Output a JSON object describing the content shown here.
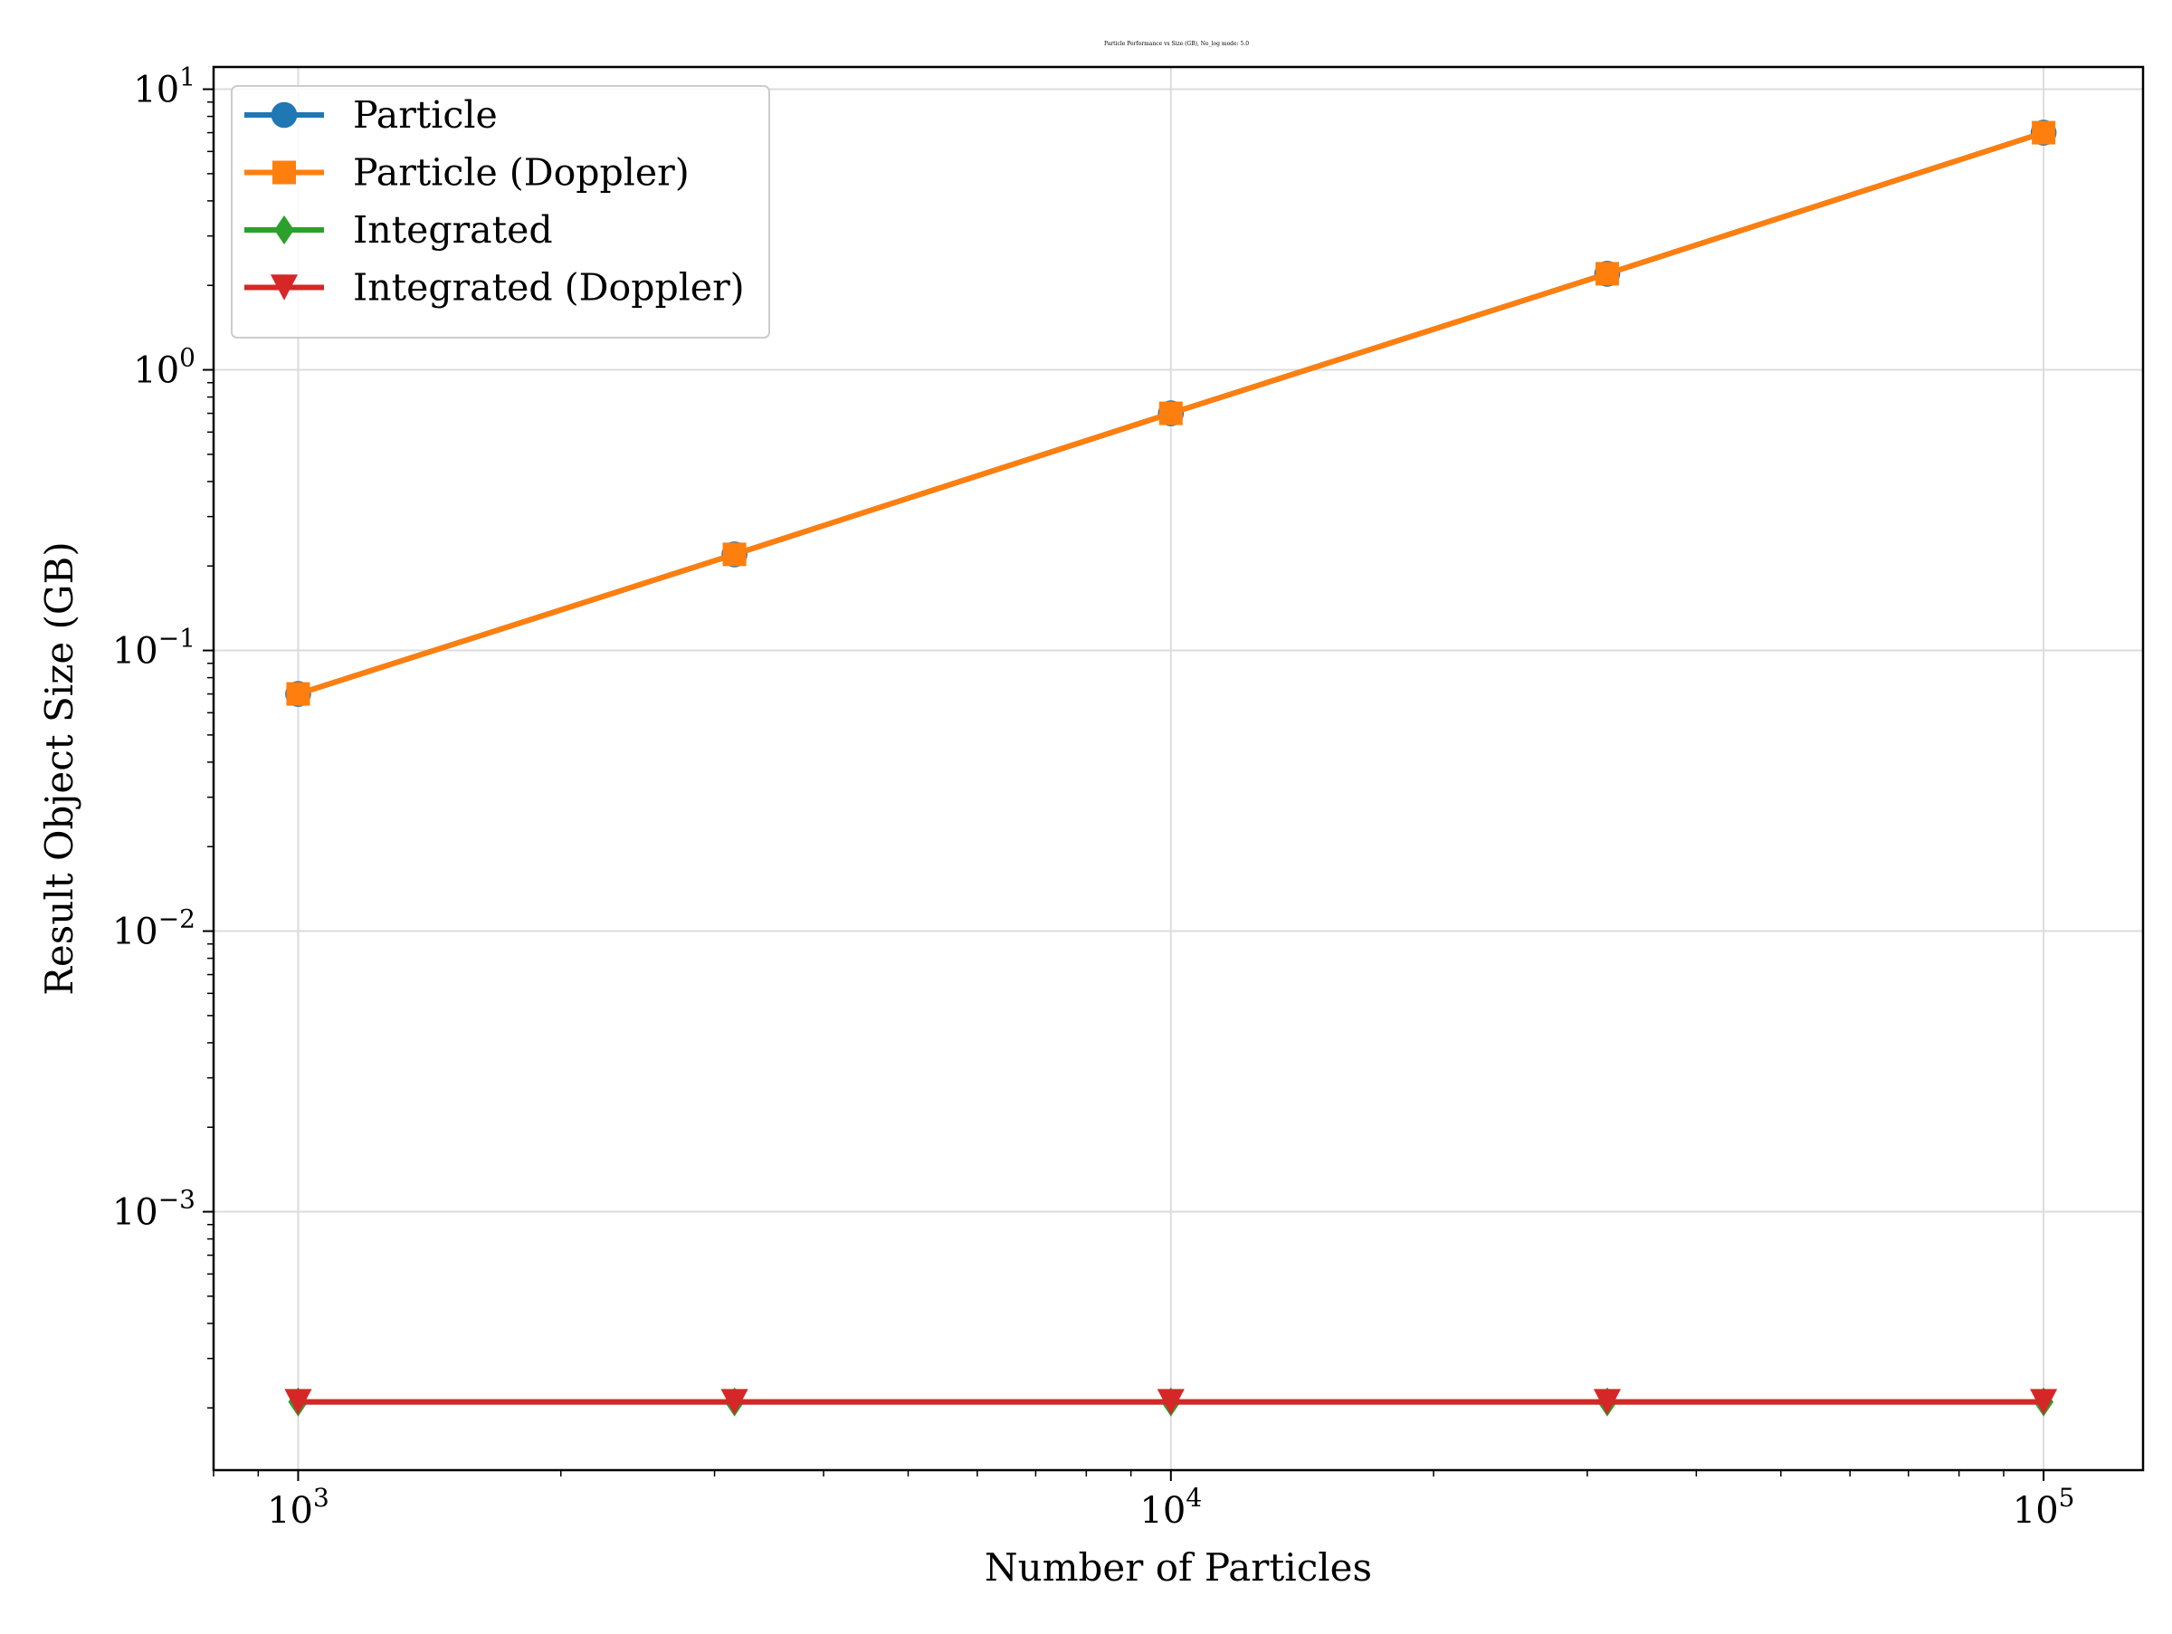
{
  "chart_data": {
    "type": "line",
    "title": "Particle Performance vs Size (GB), Ne_log mode: 5.0",
    "xlabel": "Number of Particles",
    "ylabel": "Result Object Size (GB)",
    "x_scale": "log",
    "y_scale": "log",
    "xlim": [
      800,
      130000
    ],
    "ylim": [
      0.00012,
      12
    ],
    "grid": true,
    "legend_position": "upper-left",
    "x_ticks": [
      {
        "value": 1000,
        "base": "10",
        "exp": "3"
      },
      {
        "value": 10000,
        "base": "10",
        "exp": "4"
      },
      {
        "value": 100000,
        "base": "10",
        "exp": "5"
      }
    ],
    "y_ticks": [
      {
        "value": 0.001,
        "base": "10",
        "exp": "−3"
      },
      {
        "value": 0.01,
        "base": "10",
        "exp": "−2"
      },
      {
        "value": 0.1,
        "base": "10",
        "exp": "−1"
      },
      {
        "value": 1,
        "base": "10",
        "exp": "0"
      },
      {
        "value": 10,
        "base": "10",
        "exp": "1"
      }
    ],
    "x": [
      1000,
      3162,
      10000,
      31623,
      100000
    ],
    "series": [
      {
        "name": "Particle",
        "color": "#1f77b4",
        "marker": "circle",
        "values": [
          0.07,
          0.22,
          0.7,
          2.2,
          7.0
        ]
      },
      {
        "name": "Particle (Doppler)",
        "color": "#ff7f0e",
        "marker": "square",
        "values": [
          0.07,
          0.22,
          0.7,
          2.2,
          7.0
        ]
      },
      {
        "name": "Integrated",
        "color": "#2ca02c",
        "marker": "diamond",
        "values": [
          0.00021,
          0.00021,
          0.00021,
          0.00021,
          0.00021
        ]
      },
      {
        "name": "Integrated (Doppler)",
        "color": "#d62728",
        "marker": "triangle-down",
        "values": [
          0.00021,
          0.00021,
          0.00021,
          0.00021,
          0.00021
        ]
      }
    ]
  }
}
